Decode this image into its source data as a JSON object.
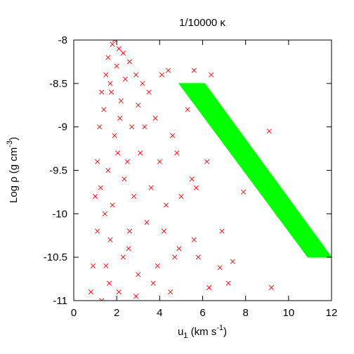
{
  "chart_data": {
    "type": "scatter",
    "title": "1/10000 κ",
    "xlabel": {
      "main": "u",
      "sub": "1",
      "rest": " (km s",
      "sup": "-1",
      "end": ")"
    },
    "ylabel": {
      "main": "Log ρ (g cm",
      "sup": "-3",
      "end": ")"
    },
    "xlim": [
      0,
      12
    ],
    "ylim": [
      -11,
      -8
    ],
    "xticks": [
      0,
      2,
      4,
      6,
      8,
      10,
      12
    ],
    "xtick_labels": [
      "0",
      "2",
      "4",
      "6",
      "8",
      "10",
      "12"
    ],
    "yticks": [
      -8,
      -8.5,
      -9,
      -9.5,
      -10,
      -10.5,
      -11
    ],
    "ytick_labels": [
      "-8",
      "-8.5",
      "-9",
      "-9.5",
      "-10",
      "-10.5",
      "-11"
    ],
    "grid": false,
    "series": [
      {
        "marker": "x",
        "color": "#ff0000",
        "points": [
          [
            1.9,
            -8.0
          ],
          [
            1.8,
            -8.05
          ],
          [
            2.1,
            -8.1
          ],
          [
            1.6,
            -8.2
          ],
          [
            2.3,
            -8.15
          ],
          [
            2.0,
            -8.3
          ],
          [
            1.5,
            -8.4
          ],
          [
            2.6,
            -8.25
          ],
          [
            1.3,
            -8.6
          ],
          [
            1.7,
            -8.5
          ],
          [
            2.4,
            -8.45
          ],
          [
            2.9,
            -8.4
          ],
          [
            3.2,
            -8.5
          ],
          [
            1.4,
            -8.8
          ],
          [
            2.2,
            -8.7
          ],
          [
            3.0,
            -8.75
          ],
          [
            3.5,
            -8.6
          ],
          [
            4.1,
            -8.4
          ],
          [
            4.4,
            -8.35
          ],
          [
            5.6,
            -8.35
          ],
          [
            6.4,
            -8.4
          ],
          [
            1.2,
            -9.0
          ],
          [
            1.9,
            -9.1
          ],
          [
            2.7,
            -9.0
          ],
          [
            3.3,
            -9.0
          ],
          [
            3.8,
            -8.9
          ],
          [
            4.6,
            -9.1
          ],
          [
            5.3,
            -8.8
          ],
          [
            5.9,
            -8.7
          ],
          [
            1.1,
            -9.4
          ],
          [
            1.6,
            -9.5
          ],
          [
            2.5,
            -9.4
          ],
          [
            3.1,
            -9.3
          ],
          [
            4.0,
            -9.4
          ],
          [
            4.8,
            -9.3
          ],
          [
            5.5,
            -9.6
          ],
          [
            6.2,
            -9.4
          ],
          [
            9.1,
            -9.05
          ],
          [
            1.0,
            -9.8
          ],
          [
            1.8,
            -9.9
          ],
          [
            2.8,
            -9.8
          ],
          [
            3.6,
            -9.7
          ],
          [
            4.3,
            -9.9
          ],
          [
            5.0,
            -9.8
          ],
          [
            5.7,
            -9.7
          ],
          [
            7.9,
            -9.75
          ],
          [
            1.1,
            -10.2
          ],
          [
            1.7,
            -10.3
          ],
          [
            2.6,
            -10.2
          ],
          [
            3.4,
            -10.1
          ],
          [
            4.2,
            -10.2
          ],
          [
            4.9,
            -10.4
          ],
          [
            5.6,
            -10.3
          ],
          [
            6.9,
            -10.2
          ],
          [
            0.9,
            -10.6
          ],
          [
            1.5,
            -10.6
          ],
          [
            2.3,
            -10.5
          ],
          [
            3.0,
            -10.7
          ],
          [
            3.9,
            -10.6
          ],
          [
            4.7,
            -10.5
          ],
          [
            5.8,
            -10.5
          ],
          [
            6.8,
            -10.62
          ],
          [
            7.4,
            -10.55
          ],
          [
            0.8,
            -10.9
          ],
          [
            1.3,
            -11.0
          ],
          [
            2.1,
            -10.9
          ],
          [
            2.9,
            -10.95
          ],
          [
            3.7,
            -10.8
          ],
          [
            4.5,
            -10.9
          ],
          [
            6.3,
            -10.85
          ],
          [
            7.2,
            -10.8
          ],
          [
            9.2,
            -10.85
          ],
          [
            1.75,
            -8.6
          ],
          [
            2.05,
            -9.3
          ],
          [
            1.45,
            -10.0
          ],
          [
            2.35,
            -9.6
          ],
          [
            1.65,
            -10.8
          ],
          [
            2.15,
            -8.9
          ],
          [
            1.25,
            -9.7
          ],
          [
            2.55,
            -10.4
          ]
        ]
      },
      {
        "marker": "band",
        "color": "#00ff00",
        "polygon": [
          [
            4.9,
            -8.5
          ],
          [
            6.1,
            -8.5
          ],
          [
            12.0,
            -10.5
          ],
          [
            10.9,
            -10.5
          ]
        ]
      }
    ]
  }
}
